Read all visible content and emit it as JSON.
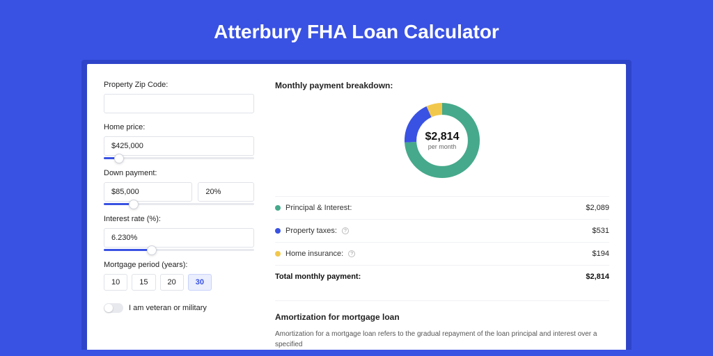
{
  "page": {
    "background_color": "#3952e3",
    "title": "Atterbury FHA Loan Calculator",
    "title_color": "#ffffff",
    "title_fontsize": 28,
    "card_background": "#ffffff",
    "shadow_color": "#2e44c9"
  },
  "form": {
    "zip": {
      "label": "Property Zip Code:",
      "value": ""
    },
    "home_price": {
      "label": "Home price:",
      "value": "$425,000",
      "slider_pct": 10
    },
    "down_payment": {
      "label": "Down payment:",
      "amount": "$85,000",
      "pct": "20%",
      "slider_pct": 20
    },
    "interest_rate": {
      "label": "Interest rate (%):",
      "value": "6.230%",
      "slider_pct": 32
    },
    "period": {
      "label": "Mortgage period (years):",
      "options": [
        "10",
        "15",
        "20",
        "30"
      ],
      "selected": "30"
    },
    "veteran": {
      "label": "I am veteran or military",
      "checked": false
    }
  },
  "breakdown": {
    "title": "Monthly payment breakdown:",
    "donut": {
      "amount": "$2,814",
      "sub": "per month",
      "background_color": "#ffffff",
      "ring_thickness": 18,
      "segments": [
        {
          "key": "principal_interest",
          "pct": 74,
          "color": "#46a98b"
        },
        {
          "key": "property_taxes",
          "pct": 19,
          "color": "#3952e3"
        },
        {
          "key": "home_insurance",
          "pct": 7,
          "color": "#f2c84c"
        }
      ]
    },
    "items": [
      {
        "label": "Principal & Interest:",
        "value": "$2,089",
        "color": "#46a98b",
        "info": false
      },
      {
        "label": "Property taxes:",
        "value": "$531",
        "color": "#3952e3",
        "info": true
      },
      {
        "label": "Home insurance:",
        "value": "$194",
        "color": "#f2c84c",
        "info": true
      }
    ],
    "total": {
      "label": "Total monthly payment:",
      "value": "$2,814"
    }
  },
  "amortization": {
    "title": "Amortization for mortgage loan",
    "text": "Amortization for a mortgage loan refers to the gradual repayment of the loan principal and interest over a specified"
  }
}
